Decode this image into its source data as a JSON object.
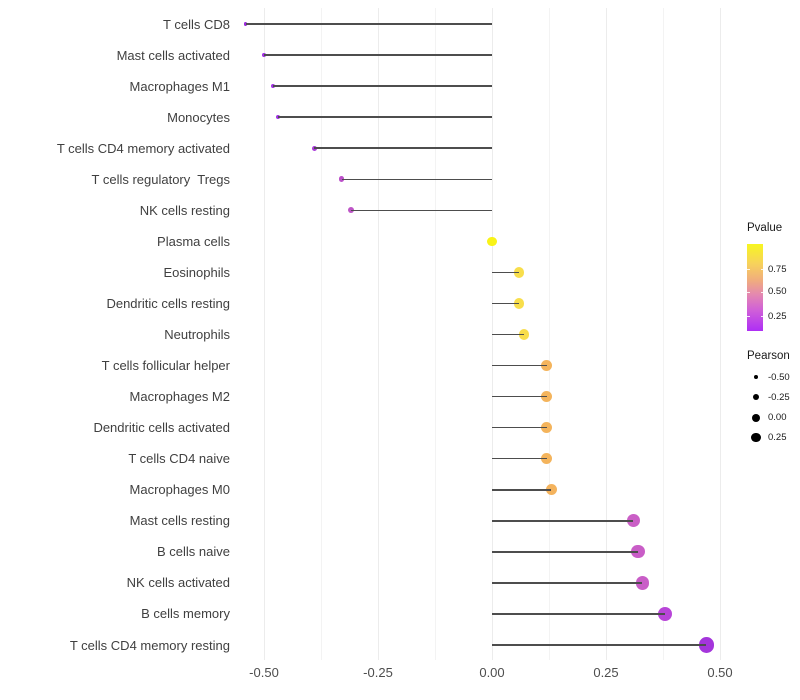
{
  "chart_data": {
    "type": "lollipop",
    "orientation": "horizontal",
    "title": "",
    "xlabel": "",
    "ylabel": "",
    "xlim": [
      -0.59,
      0.52
    ],
    "grid": "vertical only, light gray, minor lines every 0.125",
    "x_ticks": [
      {
        "value": -0.5,
        "label": "-0.50"
      },
      {
        "value": -0.25,
        "label": "-0.25"
      },
      {
        "value": 0.0,
        "label": "0.00"
      },
      {
        "value": 0.25,
        "label": "0.25"
      },
      {
        "value": 0.5,
        "label": "0.50"
      }
    ],
    "minor_gridline_values": [
      -0.375,
      -0.125,
      0.125,
      0.375
    ],
    "stem_color": "#4d4d4d",
    "rows": [
      {
        "label": "T cells CD8",
        "pearson": -0.54,
        "pvalue": 0.1,
        "color": "#9a2adb"
      },
      {
        "label": "Mast cells activated",
        "pearson": -0.5,
        "pvalue": 0.11,
        "color": "#a133e3"
      },
      {
        "label": "Macrophages M1",
        "pearson": -0.48,
        "pvalue": 0.12,
        "color": "#a133e3"
      },
      {
        "label": "Monocytes",
        "pearson": -0.47,
        "pvalue": 0.12,
        "color": "#a133e3"
      },
      {
        "label": "T cells CD4 memory activated",
        "pearson": -0.39,
        "pvalue": 0.15,
        "color": "#a93bd9"
      },
      {
        "label": "T cells regulatory  Tregs",
        "pearson": -0.33,
        "pvalue": 0.22,
        "color": "#bb4fc9"
      },
      {
        "label": "NK cells resting",
        "pearson": -0.31,
        "pvalue": 0.24,
        "color": "#be55c7"
      },
      {
        "label": "Plasma cells",
        "pearson": 0.0,
        "pvalue": 0.97,
        "color": "#f9f318"
      },
      {
        "label": "Eosinophils",
        "pearson": 0.06,
        "pvalue": 0.85,
        "color": "#f8de4b"
      },
      {
        "label": "Dendritic cells resting",
        "pearson": 0.06,
        "pvalue": 0.85,
        "color": "#f8de4b"
      },
      {
        "label": "Neutrophils",
        "pearson": 0.07,
        "pvalue": 0.84,
        "color": "#f8dd4c"
      },
      {
        "label": "T cells follicular helper",
        "pearson": 0.12,
        "pvalue": 0.62,
        "color": "#f4b45c"
      },
      {
        "label": "Macrophages M2",
        "pearson": 0.12,
        "pvalue": 0.62,
        "color": "#f4b45c"
      },
      {
        "label": "Dendritic cells activated",
        "pearson": 0.12,
        "pvalue": 0.62,
        "color": "#f4b45c"
      },
      {
        "label": "T cells CD4 naive",
        "pearson": 0.12,
        "pvalue": 0.62,
        "color": "#f4b45c"
      },
      {
        "label": "Macrophages M0",
        "pearson": 0.13,
        "pvalue": 0.61,
        "color": "#f4b35d"
      },
      {
        "label": "Mast cells resting",
        "pearson": 0.31,
        "pvalue": 0.38,
        "color": "#ca5fc6"
      },
      {
        "label": "B cells naive",
        "pearson": 0.32,
        "pvalue": 0.37,
        "color": "#c95dc7"
      },
      {
        "label": "NK cells activated",
        "pearson": 0.33,
        "pvalue": 0.37,
        "color": "#c95dc7"
      },
      {
        "label": "B cells memory",
        "pearson": 0.38,
        "pvalue": 0.25,
        "color": "#b845d8"
      },
      {
        "label": "T cells CD4 memory resting",
        "pearson": 0.47,
        "pvalue": 0.13,
        "color": "#a435db"
      }
    ],
    "legends": {
      "pvalue": {
        "title": "Pvalue",
        "gradient_stops": [
          "#f7f621",
          "#f7d35a",
          "#f0ac7e",
          "#e488b0",
          "#d060d8",
          "#ae2ef5"
        ],
        "gradient_positions": [
          0,
          22,
          42,
          58,
          76,
          100
        ],
        "ticks": [
          {
            "label": "0.75",
            "pos": 0.29
          },
          {
            "label": "0.50",
            "pos": 0.55
          },
          {
            "label": "0.25",
            "pos": 0.83
          }
        ]
      },
      "pearson": {
        "title": "Pearson",
        "entries": [
          {
            "label": "-0.50",
            "r": 2.0
          },
          {
            "label": "-0.25",
            "r": 3.2
          },
          {
            "label": "0.00",
            "r": 4.0
          },
          {
            "label": "0.25",
            "r": 4.6
          }
        ]
      }
    }
  }
}
